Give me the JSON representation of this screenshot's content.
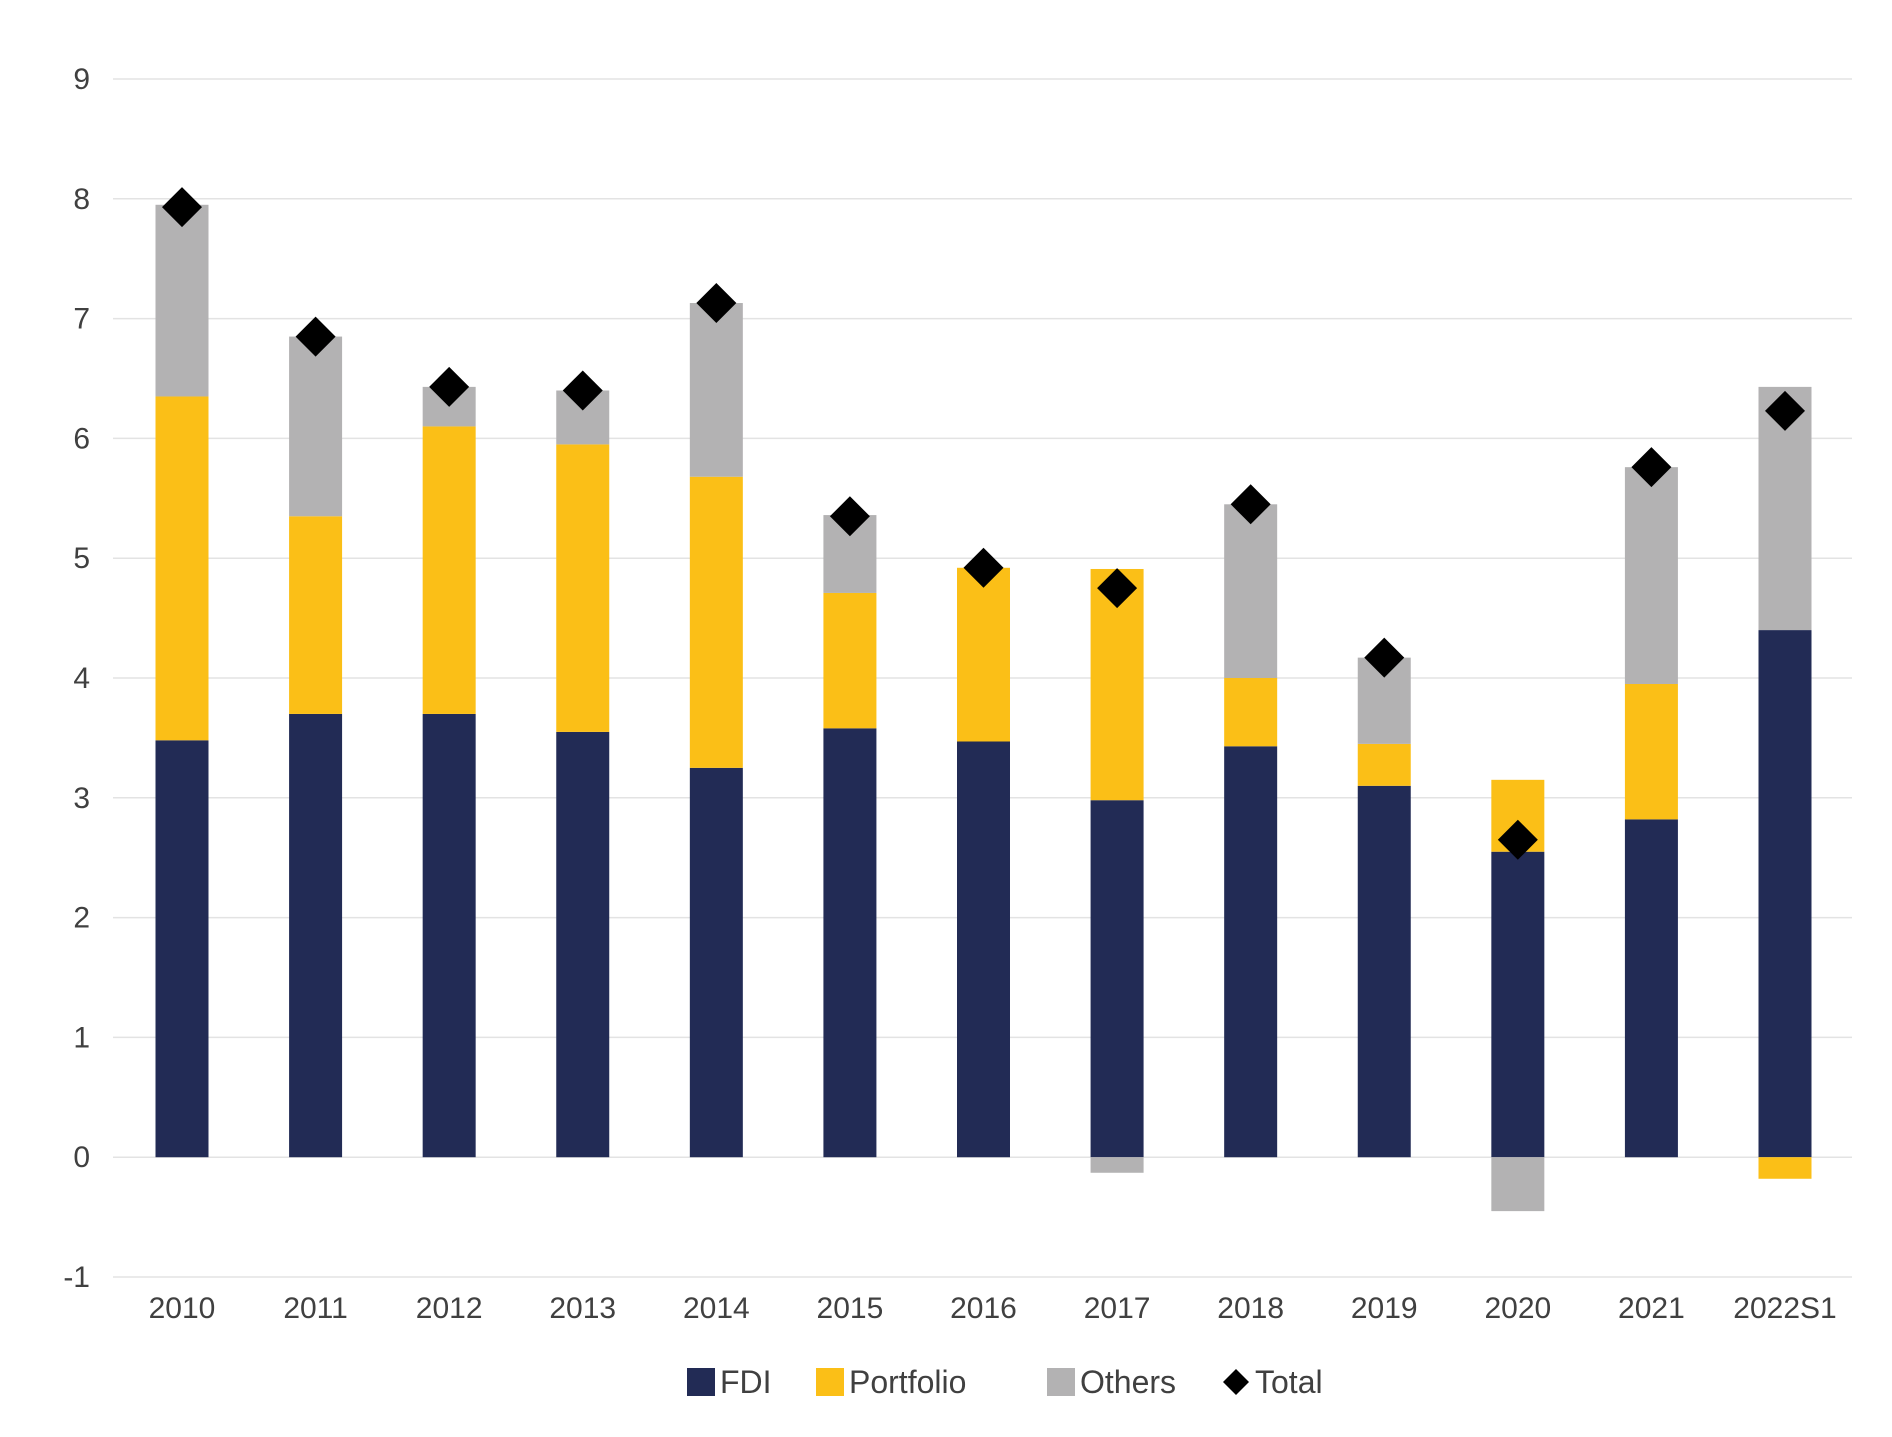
{
  "chart_data": {
    "type": "bar",
    "stacked": true,
    "title": "",
    "xlabel": "",
    "ylabel": "",
    "ylim": [
      -1,
      9
    ],
    "yticks": [
      -1,
      0,
      1,
      2,
      3,
      4,
      5,
      6,
      7,
      8,
      9
    ],
    "grid": true,
    "legend_position": "bottom",
    "categories": [
      "2010",
      "2011",
      "2012",
      "2013",
      "2014",
      "2015",
      "2016",
      "2017",
      "2018",
      "2019",
      "2020",
      "2021",
      "2022S1"
    ],
    "series": [
      {
        "name": "FDI",
        "kind": "bar",
        "color": "#222b55",
        "values": [
          3.48,
          3.7,
          3.7,
          3.55,
          3.25,
          3.58,
          3.47,
          2.98,
          3.43,
          3.1,
          2.55,
          2.82,
          4.4
        ]
      },
      {
        "name": "Portfolio",
        "kind": "bar",
        "color": "#fbbf17",
        "values": [
          2.87,
          1.65,
          2.4,
          2.4,
          2.43,
          1.13,
          1.45,
          1.93,
          0.57,
          0.35,
          0.6,
          1.13,
          -0.18
        ]
      },
      {
        "name": "Others",
        "kind": "bar",
        "color": "#b3b2b3",
        "values": [
          1.6,
          1.5,
          0.33,
          0.45,
          1.45,
          0.65,
          0.0,
          -0.13,
          1.45,
          0.72,
          -0.45,
          1.81,
          2.03
        ]
      },
      {
        "name": "Total",
        "kind": "marker",
        "marker": "diamond",
        "color": "#000000",
        "values": [
          7.93,
          6.85,
          6.43,
          6.4,
          7.13,
          5.35,
          4.92,
          4.75,
          5.45,
          4.17,
          2.65,
          5.76,
          6.23
        ]
      }
    ]
  }
}
